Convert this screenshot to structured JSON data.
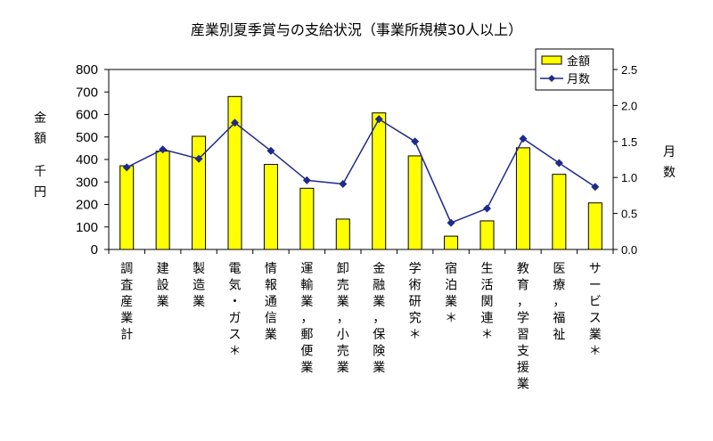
{
  "chart_data": {
    "type": "bar",
    "title": "産業別夏季賞与の支給状況（事業所規模30人以上）",
    "ylabel": "金額　千円",
    "y2label": "月数",
    "categories": [
      "調査産業計",
      "建設業",
      "製造業",
      "電気・ガス＊",
      "情報通信業",
      "運輸業，郵便業",
      "卸売業，小売業",
      "金融業，保険業",
      "学術研究＊",
      "宿泊業＊",
      "生活関連＊",
      "教育，学習支援業",
      "医療，福祉",
      "サービス業＊"
    ],
    "series": [
      {
        "name": "金額",
        "type": "bar",
        "axis": "left",
        "values": [
          372,
          437,
          503,
          680,
          378,
          272,
          135,
          607,
          416,
          59,
          127,
          452,
          334,
          207
        ],
        "color": "#ffff00"
      },
      {
        "name": "月数",
        "type": "line",
        "axis": "right",
        "values": [
          1.14,
          1.39,
          1.26,
          1.76,
          1.37,
          0.96,
          0.91,
          1.81,
          1.5,
          0.37,
          0.57,
          1.54,
          1.2,
          0.87
        ],
        "color": "#1f2a8a"
      }
    ],
    "ylim": [
      0,
      800
    ],
    "y_ticks": [
      "0",
      "100",
      "200",
      "300",
      "400",
      "500",
      "600",
      "700",
      "800"
    ],
    "y2lim": [
      0,
      2.5
    ],
    "y2_ticks": [
      "0.0",
      "0.5",
      "1.0",
      "1.5",
      "2.0",
      "2.5"
    ],
    "legend_position": "top-right",
    "grid": false
  }
}
